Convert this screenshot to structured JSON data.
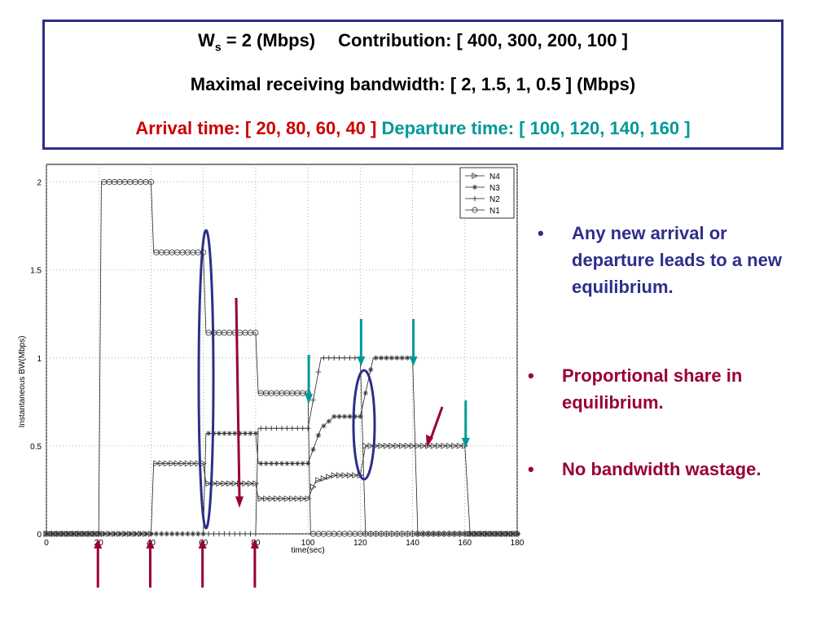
{
  "header": {
    "ws_label": "W",
    "ws_sub": "s",
    "ws_value": " = 2 (Mbps)",
    "contribution": "Contribution: [ 400, 300, 200, 100 ]",
    "max_bw": "Maximal receiving bandwidth: [ 2, 1.5, 1, 0.5 ] (Mbps)",
    "arrival": "Arrival time: [ 20, 80, 60, 40 ]",
    "departure": "Departure time: [ 100, 120, 140, 160 ]"
  },
  "bullets": [
    {
      "dot": "•",
      "text": "Any new arrival or departure leads to a new equilibrium."
    },
    {
      "dot": "•",
      "text": "Proportional share in equilibrium."
    },
    {
      "dot": "•",
      "text": "No bandwidth wastage."
    }
  ],
  "colors": {
    "navy": "#2e2e8a",
    "maroon": "#990033",
    "teal": "#009999",
    "red": "#cc0000"
  },
  "chart_data": {
    "type": "line",
    "xlabel": "time(sec)",
    "ylabel": "Instantaneous BW(Mbps)",
    "xlim": [
      0,
      180
    ],
    "ylim": [
      0,
      2.1
    ],
    "xticks": [
      0,
      20,
      40,
      60,
      80,
      100,
      120,
      140,
      160,
      180
    ],
    "yticks": [
      0,
      0.5,
      1,
      1.5,
      2
    ],
    "ytick_labels": [
      "0",
      "0.5",
      "1",
      "1.5",
      "2"
    ],
    "grid": true,
    "legend_position": "top-right",
    "series": [
      {
        "name": "N4",
        "marker": "triangle",
        "x": [
          0,
          40,
          41,
          60,
          61,
          80,
          81,
          100,
          103,
          110,
          120,
          122,
          140,
          160,
          162,
          180
        ],
        "y": [
          0,
          0,
          0.4,
          0.4,
          0.286,
          0.286,
          0.2,
          0.2,
          0.3,
          0.333,
          0.333,
          0.5,
          0.5,
          0.5,
          0,
          0
        ]
      },
      {
        "name": "N3",
        "marker": "star",
        "x": [
          0,
          60,
          61,
          80,
          81,
          100,
          105,
          110,
          120,
          125,
          140,
          142,
          180
        ],
        "y": [
          0,
          0,
          0.571,
          0.571,
          0.4,
          0.4,
          0.6,
          0.667,
          0.667,
          1.0,
          1.0,
          0,
          0
        ]
      },
      {
        "name": "N2",
        "marker": "plus",
        "x": [
          0,
          80,
          81,
          100,
          105,
          120,
          122,
          180
        ],
        "y": [
          0,
          0,
          0.6,
          0.6,
          1.0,
          1.0,
          0,
          0
        ]
      },
      {
        "name": "N1",
        "marker": "circle",
        "x": [
          0,
          20,
          21,
          40,
          41,
          60,
          61,
          80,
          81,
          100,
          101,
          180
        ],
        "y": [
          0,
          0,
          2.0,
          2.0,
          1.6,
          1.6,
          1.143,
          1.143,
          0.8,
          0.8,
          0,
          0
        ]
      }
    ],
    "annotations": {
      "arrival_arrows_at_x": [
        20,
        40,
        60,
        80
      ],
      "departure_arrows_at_x": [
        100,
        120,
        140,
        160
      ],
      "ellipses_at_x": [
        60,
        121
      ]
    }
  }
}
